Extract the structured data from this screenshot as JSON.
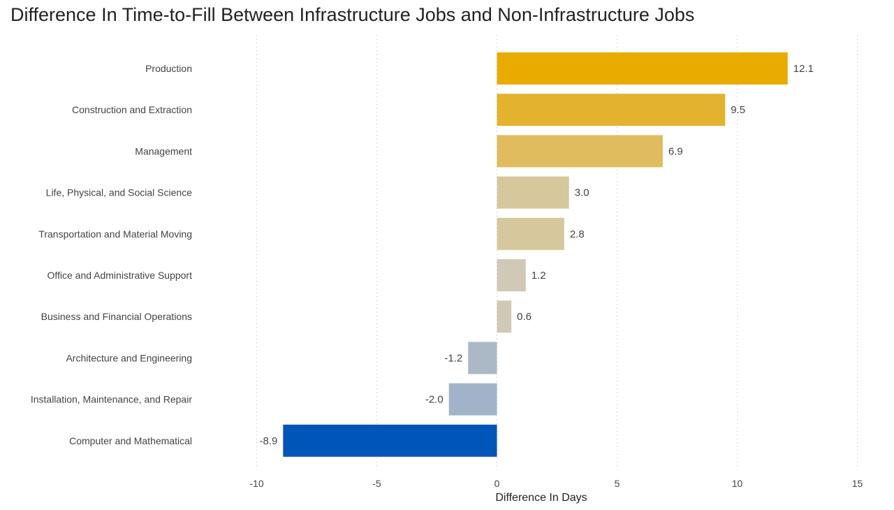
{
  "chart_data": {
    "type": "bar",
    "orientation": "horizontal",
    "title": "Difference In Time-to-Fill Between Infrastructure Jobs and Non-Infrastructure Jobs",
    "xlabel": "Difference In Days",
    "ylabel": "",
    "xlim": [
      -10,
      15
    ],
    "xticks": [
      -10,
      -5,
      0,
      5,
      10,
      15
    ],
    "grid": "vertical dotted",
    "legend": "none",
    "categories": [
      "Production",
      "Construction and Extraction",
      "Management",
      "Life, Physical, and Social Science",
      "Transportation and Material Moving",
      "Office and Administrative Support",
      "Business and Financial Operations",
      "Architecture and Engineering",
      "Installation, Maintenance, and Repair",
      "Computer and Mathematical"
    ],
    "values": [
      12.1,
      9.5,
      6.9,
      3.0,
      2.8,
      1.2,
      0.6,
      -1.2,
      -2.0,
      -8.9
    ],
    "value_labels": [
      "12.1",
      "9.5",
      "6.9",
      "3.0",
      "2.8",
      "1.2",
      "0.6",
      "-1.2",
      "-2.0",
      "-8.9"
    ],
    "colors": [
      "#EAAB00",
      "#E3B22F",
      "#E0BC5E",
      "#D6C79C",
      "#D6C79C",
      "#D0C9B5",
      "#D0C9B5",
      "#ABB8C6",
      "#A2B3C9",
      "#0055B8"
    ]
  }
}
